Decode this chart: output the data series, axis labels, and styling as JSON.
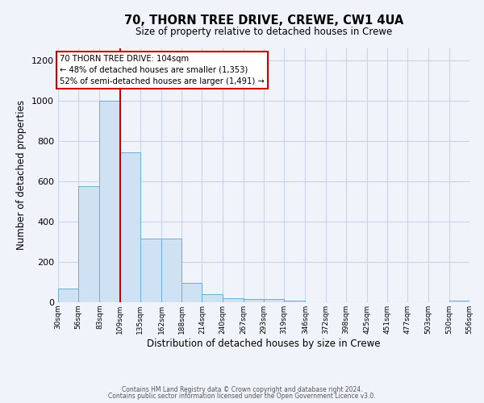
{
  "title": "70, THORN TREE DRIVE, CREWE, CW1 4UA",
  "subtitle": "Size of property relative to detached houses in Crewe",
  "xlabel": "Distribution of detached houses by size in Crewe",
  "ylabel": "Number of detached properties",
  "bar_color": "#cfe2f3",
  "bar_edge_color": "#6baed6",
  "background_color": "#f0f4fa",
  "grid_color": "#c8d4e8",
  "annotation_box_color": "#ffffff",
  "annotation_border_color": "#cc0000",
  "vline_color": "#cc0000",
  "bin_edges": [
    30,
    56,
    83,
    109,
    135,
    162,
    188,
    214,
    240,
    267,
    293,
    319,
    346,
    372,
    398,
    425,
    451,
    477,
    503,
    530,
    556
  ],
  "bin_labels": [
    "30sqm",
    "56sqm",
    "83sqm",
    "109sqm",
    "135sqm",
    "162sqm",
    "188sqm",
    "214sqm",
    "240sqm",
    "267sqm",
    "293sqm",
    "319sqm",
    "346sqm",
    "372sqm",
    "398sqm",
    "425sqm",
    "451sqm",
    "477sqm",
    "503sqm",
    "530sqm",
    "556sqm"
  ],
  "counts": [
    70,
    575,
    1000,
    745,
    315,
    315,
    95,
    40,
    20,
    15,
    15,
    10,
    0,
    0,
    0,
    0,
    0,
    0,
    0,
    10
  ],
  "ylim": [
    0,
    1260
  ],
  "yticks": [
    0,
    200,
    400,
    600,
    800,
    1000,
    1200
  ],
  "vline_x": 109,
  "annotation_text": "70 THORN TREE DRIVE: 104sqm\n← 48% of detached houses are smaller (1,353)\n52% of semi-detached houses are larger (1,491) →",
  "footer_line1": "Contains HM Land Registry data © Crown copyright and database right 2024.",
  "footer_line2": "Contains public sector information licensed under the Open Government Licence v3.0."
}
